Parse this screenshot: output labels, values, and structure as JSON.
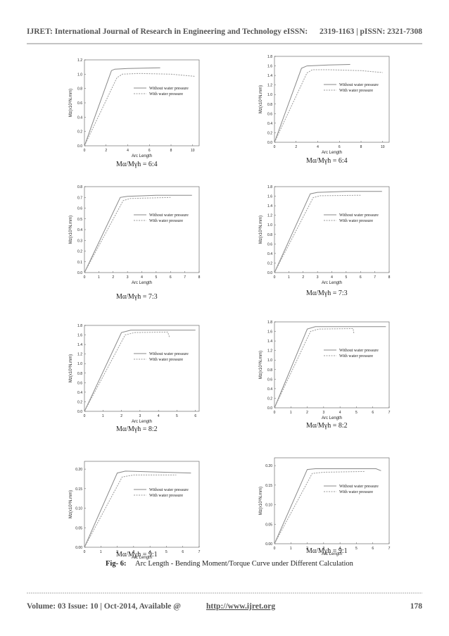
{
  "header": {
    "left": "IJRET: International Journal of Research in Engineering and Technology eISSN:",
    "right": "2319-1163 | pISSN: 2321-7308"
  },
  "footer": {
    "left": "Volume: 03 Issue: 10 | Oct-2014, Available @",
    "link": "http://www.ijret.org",
    "page": "178"
  },
  "figure": {
    "label": "Fig- 6:",
    "caption": "Arc Length - Bending Moment/Torque Curve under Different Calculation"
  },
  "chart_data": [
    {
      "type": "line",
      "caption": "Mα/Mγh = 6:4",
      "xlabel": "Arc Length",
      "ylabel": "Mz(x10⁶N.mm)",
      "xlim": [
        0,
        10.6
      ],
      "xticks": [
        0,
        2,
        4,
        6,
        8,
        10
      ],
      "ylim": [
        0,
        1.2
      ],
      "yticks": [
        {
          "value": 0,
          "label": "0.0"
        },
        0.2,
        0.4,
        0.6,
        0.8,
        {
          "value": 1,
          "label": "1.0"
        },
        1.2
      ],
      "legend": "right",
      "series": [
        {
          "name": "Without water pressure",
          "color": "#888888",
          "style": "solid",
          "x": [
            0,
            2.5,
            2.8,
            4,
            7
          ],
          "values": [
            0,
            1.05,
            1.07,
            1.08,
            1.09
          ]
        },
        {
          "name": "With water pressure",
          "color": "#999999",
          "style": "dashed",
          "x": [
            0,
            3,
            3.5,
            5,
            8,
            10.2
          ],
          "values": [
            0,
            0.95,
            1,
            1.01,
            1,
            0.97
          ]
        }
      ]
    },
    {
      "type": "line",
      "caption": "Mα/Mγh = 6:4",
      "xlabel": "Arc Length",
      "ylabel": "Mz(x10⁶N.mm)",
      "xlim": [
        0,
        10.6
      ],
      "xticks": [
        0,
        2,
        4,
        6,
        8,
        10
      ],
      "ylim": [
        0,
        1.8
      ],
      "yticks": [
        {
          "value": 0,
          "label": "0.0"
        },
        0.2,
        0.4,
        0.6,
        0.8,
        {
          "value": 1,
          "label": "1.0"
        },
        1.2,
        1.4,
        1.6,
        1.8
      ],
      "legend": "right",
      "series": [
        {
          "name": "Without water pressure",
          "color": "#888888",
          "style": "solid",
          "x": [
            0,
            2.5,
            3,
            5,
            7
          ],
          "values": [
            0,
            1.55,
            1.6,
            1.62,
            1.63
          ]
        },
        {
          "name": "With water pressure",
          "color": "#999999",
          "style": "dashed",
          "x": [
            0,
            3,
            3.5,
            5,
            8,
            10
          ],
          "values": [
            0,
            1.45,
            1.52,
            1.52,
            1.5,
            1.46
          ]
        }
      ]
    },
    {
      "type": "line",
      "caption": "Mα/Mγh = 7:3",
      "xlabel": "Arc Length",
      "ylabel": "Mz(x10⁶N.mm)",
      "xlim": [
        0,
        8
      ],
      "xticks": [
        0,
        1,
        2,
        3,
        4,
        5,
        6,
        7,
        8
      ],
      "ylim": [
        0,
        0.8
      ],
      "yticks": [
        {
          "value": 0,
          "label": "0.0"
        },
        0.1,
        0.2,
        0.3,
        0.4,
        0.5,
        0.6,
        0.7,
        0.8
      ],
      "legend": "right",
      "series": [
        {
          "name": "Without water pressure",
          "color": "#888888",
          "style": "solid",
          "x": [
            0,
            2.5,
            3,
            5,
            7.5
          ],
          "values": [
            0,
            0.7,
            0.71,
            0.72,
            0.72
          ]
        },
        {
          "name": "With water pressure",
          "color": "#999999",
          "style": "dashed",
          "x": [
            0,
            2.7,
            3.2,
            6
          ],
          "values": [
            0,
            0.67,
            0.69,
            0.7
          ]
        }
      ]
    },
    {
      "type": "line",
      "caption": "Mα/Mγh = 7:3",
      "xlabel": "Arc Length",
      "ylabel": "Mz(x10⁶N.mm)",
      "xlim": [
        0,
        8
      ],
      "xticks": [
        0,
        1,
        2,
        3,
        4,
        5,
        6,
        7,
        8
      ],
      "ylim": [
        0,
        1.8
      ],
      "yticks": [
        {
          "value": 0,
          "label": "0.0"
        },
        0.2,
        0.4,
        0.6,
        0.8,
        {
          "value": 1,
          "label": "1.0"
        },
        1.2,
        1.4,
        1.6,
        1.8
      ],
      "legend": "right",
      "series": [
        {
          "name": "Without water pressure",
          "color": "#888888",
          "style": "solid",
          "x": [
            0,
            2.5,
            3,
            5,
            7.5
          ],
          "values": [
            0,
            1.65,
            1.68,
            1.7,
            1.7
          ]
        },
        {
          "name": "With water pressure",
          "color": "#999999",
          "style": "dashed",
          "x": [
            0,
            2.7,
            3.2,
            6
          ],
          "values": [
            0,
            1.57,
            1.61,
            1.62
          ]
        }
      ]
    },
    {
      "type": "line",
      "caption": "Mα/Mγh = 8:2",
      "xlabel": "Arc Length",
      "ylabel": "Mz(x10⁶N.mm)",
      "xlim": [
        0,
        6.2
      ],
      "xticks": [
        0,
        1,
        2,
        3,
        4,
        5,
        6
      ],
      "ylim": [
        0,
        1.8
      ],
      "yticks": [
        {
          "value": 0,
          "label": "0.0"
        },
        0.2,
        0.4,
        0.6,
        0.8,
        {
          "value": 1,
          "label": "1.0"
        },
        1.2,
        1.4,
        1.6,
        1.8
      ],
      "legend": "right",
      "series": [
        {
          "name": "Without water pressure",
          "color": "#888888",
          "style": "solid",
          "x": [
            0,
            2,
            2.5,
            6
          ],
          "values": [
            0,
            1.65,
            1.7,
            1.7
          ]
        },
        {
          "name": "With water pressure",
          "color": "#999999",
          "style": "dashed",
          "x": [
            0,
            2.2,
            2.7,
            4.5,
            4.6
          ],
          "values": [
            0,
            1.6,
            1.65,
            1.66,
            1.55
          ]
        }
      ]
    },
    {
      "type": "line",
      "caption": "Mα/Mγh = 8:2",
      "xlabel": "Arc Length",
      "ylabel": "Mz(x10⁶N.mm)",
      "xlim": [
        0,
        7
      ],
      "xticks": [
        0,
        1,
        2,
        3,
        4,
        5,
        6,
        7
      ],
      "ylim": [
        0,
        1.8
      ],
      "yticks": [
        {
          "value": 0,
          "label": "0.0"
        },
        0.2,
        0.4,
        0.6,
        0.8,
        {
          "value": 1,
          "label": "1.0"
        },
        1.2,
        1.4,
        1.6,
        1.8
      ],
      "legend": "right",
      "series": [
        {
          "name": "Without water pressure",
          "color": "#888888",
          "style": "solid",
          "x": [
            0,
            2,
            2.5,
            6.8
          ],
          "values": [
            0,
            1.65,
            1.7,
            1.7
          ]
        },
        {
          "name": "With water pressure",
          "color": "#999999",
          "style": "dashed",
          "x": [
            0,
            2.2,
            2.7,
            4.8,
            4.85
          ],
          "values": [
            0,
            1.6,
            1.65,
            1.66,
            1.55
          ]
        }
      ]
    },
    {
      "type": "line",
      "caption": "Mα/Mγh = 9:1",
      "xlabel": "Arc Length",
      "ylabel": "Mz(x10⁶N.mm)",
      "xlim": [
        0,
        7
      ],
      "xticks": [
        0,
        1,
        2,
        3,
        4,
        5,
        6,
        7
      ],
      "ylim": [
        0,
        0.22
      ],
      "yticks": [
        {
          "value": 0,
          "label": "0.00"
        },
        0.05,
        {
          "value": 0.1,
          "label": "0.10"
        },
        0.15,
        {
          "value": 0.2,
          "label": "0.20"
        }
      ],
      "legend": "right",
      "series": [
        {
          "name": "Without water pressure",
          "color": "#888888",
          "style": "solid",
          "x": [
            0,
            2,
            2.5,
            6.5
          ],
          "values": [
            0,
            0.19,
            0.195,
            0.19
          ]
        },
        {
          "name": "With water pressure",
          "color": "#999999",
          "style": "dashed",
          "x": [
            0,
            2.3,
            3,
            5.6
          ],
          "values": [
            0,
            0.18,
            0.185,
            0.185
          ]
        }
      ]
    },
    {
      "type": "line",
      "caption": "Mα/Mγh = 9:1",
      "xlabel": "Arc Length",
      "ylabel": "Mz(x10⁶N.mm)",
      "xlim": [
        0,
        7
      ],
      "xticks": [
        0,
        1,
        2,
        3,
        4,
        5,
        6,
        7
      ],
      "ylim": [
        0,
        0.22
      ],
      "yticks": [
        {
          "value": 0,
          "label": "0.00"
        },
        0.05,
        {
          "value": 0.1,
          "label": "0.10"
        },
        0.15,
        {
          "value": 0.2,
          "label": "0.20"
        }
      ],
      "legend": "right",
      "series": [
        {
          "name": "Without water pressure",
          "color": "#888888",
          "style": "solid",
          "x": [
            0,
            2,
            2.5,
            6.2,
            6.5
          ],
          "values": [
            0,
            0.19,
            0.192,
            0.192,
            0.187
          ]
        },
        {
          "name": "With water pressure",
          "color": "#999999",
          "style": "dashed",
          "x": [
            0,
            2.3,
            3,
            5.5
          ],
          "values": [
            0,
            0.18,
            0.183,
            0.185
          ]
        }
      ]
    }
  ]
}
